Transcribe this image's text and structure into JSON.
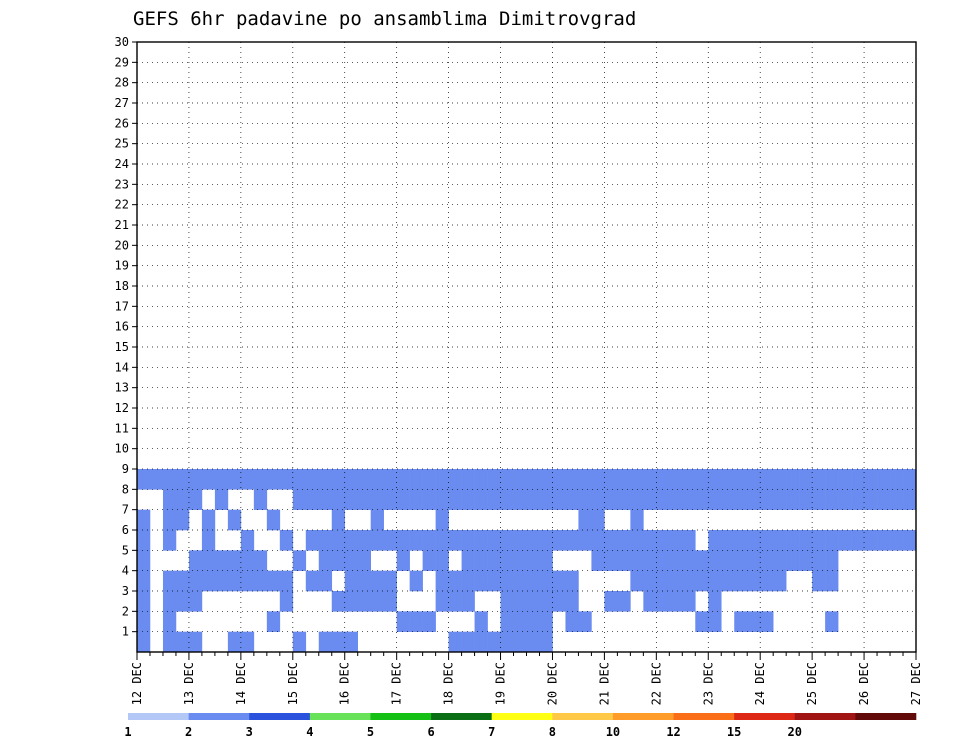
{
  "chart_data": {
    "type": "heatmap",
    "title": "GEFS 6hr padavine po ansamblima Dimitrovgrad",
    "xlabel": "",
    "ylabel": "",
    "x_tick_labels": [
      "12 DEC",
      "13 DEC",
      "14 DEC",
      "15 DEC",
      "16 DEC",
      "17 DEC",
      "18 DEC",
      "19 DEC",
      "20 DEC",
      "21 DEC",
      "22 DEC",
      "23 DEC",
      "24 DEC",
      "25 DEC",
      "26 DEC",
      "27 DEC"
    ],
    "y_tick_labels": [
      "1",
      "2",
      "3",
      "4",
      "5",
      "6",
      "7",
      "8",
      "9",
      "10",
      "11",
      "12",
      "13",
      "14",
      "15",
      "16",
      "17",
      "18",
      "19",
      "20",
      "21",
      "22",
      "23",
      "24",
      "25",
      "26",
      "27",
      "28",
      "29",
      "30"
    ],
    "xlim": [
      0,
      60
    ],
    "ylim": [
      0,
      30
    ],
    "grid": true,
    "x_unit": "6-hour steps from 12 DEC 00Z",
    "y_unit": "ensemble member",
    "colorbar": {
      "levels": [
        "1",
        "2",
        "3",
        "4",
        "5",
        "6",
        "7",
        "8",
        "10",
        "12",
        "15",
        "20"
      ],
      "colors": [
        "#b4c8f8",
        "#6a8cf0",
        "#2a52dc",
        "#68e258",
        "#14c014",
        "#0a6e14",
        "#ffff14",
        "#ffc846",
        "#ff9c2a",
        "#fa6e18",
        "#dc2814",
        "#a01414",
        "#620a0a"
      ]
    },
    "cells": [
      [
        0,
        0,
        1
      ],
      [
        2,
        0,
        1
      ],
      [
        3,
        0,
        1
      ],
      [
        4,
        0,
        1
      ],
      [
        7,
        0,
        1
      ],
      [
        8,
        0,
        1
      ],
      [
        12,
        0,
        1
      ],
      [
        14,
        0,
        1
      ],
      [
        15,
        0,
        1
      ],
      [
        16,
        0,
        1
      ],
      [
        24,
        0,
        1
      ],
      [
        25,
        0,
        1
      ],
      [
        26,
        0,
        1
      ],
      [
        27,
        0,
        1
      ],
      [
        28,
        0,
        1
      ],
      [
        29,
        0,
        1
      ],
      [
        30,
        0,
        1
      ],
      [
        31,
        0,
        1
      ],
      [
        0,
        1,
        1
      ],
      [
        2,
        1,
        1
      ],
      [
        10,
        1,
        1
      ],
      [
        20,
        1,
        1
      ],
      [
        21,
        1,
        1
      ],
      [
        22,
        1,
        1
      ],
      [
        26,
        1,
        1
      ],
      [
        28,
        1,
        1
      ],
      [
        29,
        1,
        1
      ],
      [
        30,
        1,
        1
      ],
      [
        31,
        1,
        1
      ],
      [
        33,
        1,
        1
      ],
      [
        34,
        1,
        1
      ],
      [
        43,
        1,
        1
      ],
      [
        44,
        1,
        1
      ],
      [
        46,
        1,
        1
      ],
      [
        47,
        1,
        1
      ],
      [
        48,
        1,
        1
      ],
      [
        53,
        1,
        1
      ],
      [
        0,
        2,
        1
      ],
      [
        2,
        2,
        1
      ],
      [
        3,
        2,
        1
      ],
      [
        4,
        2,
        1
      ],
      [
        11,
        2,
        1
      ],
      [
        15,
        2,
        1
      ],
      [
        16,
        2,
        1
      ],
      [
        17,
        2,
        1
      ],
      [
        18,
        2,
        1
      ],
      [
        19,
        2,
        1
      ],
      [
        23,
        2,
        1
      ],
      [
        24,
        2,
        1
      ],
      [
        25,
        2,
        1
      ],
      [
        28,
        2,
        1
      ],
      [
        29,
        2,
        1
      ],
      [
        30,
        2,
        1
      ],
      [
        31,
        2,
        1
      ],
      [
        32,
        2,
        1
      ],
      [
        33,
        2,
        1
      ],
      [
        36,
        2,
        1
      ],
      [
        37,
        2,
        1
      ],
      [
        39,
        2,
        1
      ],
      [
        40,
        2,
        1
      ],
      [
        41,
        2,
        1
      ],
      [
        42,
        2,
        1
      ],
      [
        44,
        2,
        1
      ],
      [
        0,
        3,
        1
      ],
      [
        2,
        3,
        1
      ],
      [
        3,
        3,
        1
      ],
      [
        4,
        3,
        1
      ],
      [
        5,
        3,
        1
      ],
      [
        6,
        3,
        1
      ],
      [
        7,
        3,
        1
      ],
      [
        8,
        3,
        1
      ],
      [
        9,
        3,
        1
      ],
      [
        10,
        3,
        1
      ],
      [
        11,
        3,
        1
      ],
      [
        13,
        3,
        1
      ],
      [
        14,
        3,
        1
      ],
      [
        16,
        3,
        1
      ],
      [
        17,
        3,
        1
      ],
      [
        18,
        3,
        1
      ],
      [
        19,
        3,
        1
      ],
      [
        21,
        3,
        1
      ],
      [
        23,
        3,
        1
      ],
      [
        24,
        3,
        1
      ],
      [
        25,
        3,
        1
      ],
      [
        26,
        3,
        1
      ],
      [
        27,
        3,
        1
      ],
      [
        28,
        3,
        1
      ],
      [
        29,
        3,
        1
      ],
      [
        30,
        3,
        1
      ],
      [
        31,
        3,
        1
      ],
      [
        32,
        3,
        1
      ],
      [
        33,
        3,
        1
      ],
      [
        38,
        3,
        1
      ],
      [
        39,
        3,
        1
      ],
      [
        40,
        3,
        1
      ],
      [
        41,
        3,
        1
      ],
      [
        42,
        3,
        1
      ],
      [
        43,
        3,
        1
      ],
      [
        44,
        3,
        1
      ],
      [
        45,
        3,
        1
      ],
      [
        46,
        3,
        1
      ],
      [
        47,
        3,
        1
      ],
      [
        48,
        3,
        1
      ],
      [
        49,
        3,
        1
      ],
      [
        52,
        3,
        1
      ],
      [
        53,
        3,
        1
      ],
      [
        0,
        4,
        1
      ],
      [
        4,
        4,
        1
      ],
      [
        5,
        4,
        1
      ],
      [
        6,
        4,
        1
      ],
      [
        7,
        4,
        1
      ],
      [
        8,
        4,
        1
      ],
      [
        9,
        4,
        1
      ],
      [
        12,
        4,
        1
      ],
      [
        14,
        4,
        1
      ],
      [
        15,
        4,
        1
      ],
      [
        16,
        4,
        1
      ],
      [
        17,
        4,
        1
      ],
      [
        20,
        4,
        1
      ],
      [
        22,
        4,
        1
      ],
      [
        23,
        4,
        1
      ],
      [
        25,
        4,
        1
      ],
      [
        26,
        4,
        1
      ],
      [
        27,
        4,
        1
      ],
      [
        28,
        4,
        1
      ],
      [
        29,
        4,
        1
      ],
      [
        30,
        4,
        1
      ],
      [
        31,
        4,
        1
      ],
      [
        35,
        4,
        1
      ],
      [
        36,
        4,
        1
      ],
      [
        37,
        4,
        1
      ],
      [
        38,
        4,
        1
      ],
      [
        39,
        4,
        1
      ],
      [
        40,
        4,
        1
      ],
      [
        41,
        4,
        1
      ],
      [
        42,
        4,
        1
      ],
      [
        43,
        4,
        1
      ],
      [
        44,
        4,
        1
      ],
      [
        45,
        4,
        1
      ],
      [
        46,
        4,
        1
      ],
      [
        47,
        4,
        1
      ],
      [
        48,
        4,
        1
      ],
      [
        49,
        4,
        1
      ],
      [
        50,
        4,
        1
      ],
      [
        51,
        4,
        1
      ],
      [
        52,
        4,
        1
      ],
      [
        53,
        4,
        1
      ],
      [
        0,
        5,
        1
      ],
      [
        2,
        5,
        1
      ],
      [
        5,
        5,
        1
      ],
      [
        8,
        5,
        1
      ],
      [
        11,
        5,
        1
      ],
      [
        13,
        5,
        1
      ],
      [
        14,
        5,
        1
      ],
      [
        15,
        5,
        1
      ],
      [
        16,
        5,
        1
      ],
      [
        17,
        5,
        1
      ],
      [
        18,
        5,
        1
      ],
      [
        19,
        5,
        1
      ],
      [
        20,
        5,
        1
      ],
      [
        21,
        5,
        1
      ],
      [
        22,
        5,
        1
      ],
      [
        23,
        5,
        1
      ],
      [
        24,
        5,
        1
      ],
      [
        25,
        5,
        1
      ],
      [
        26,
        5,
        1
      ],
      [
        27,
        5,
        1
      ],
      [
        28,
        5,
        1
      ],
      [
        29,
        5,
        1
      ],
      [
        30,
        5,
        1
      ],
      [
        31,
        5,
        1
      ],
      [
        32,
        5,
        1
      ],
      [
        33,
        5,
        1
      ],
      [
        34,
        5,
        1
      ],
      [
        35,
        5,
        1
      ],
      [
        36,
        5,
        1
      ],
      [
        37,
        5,
        1
      ],
      [
        38,
        5,
        1
      ],
      [
        39,
        5,
        1
      ],
      [
        40,
        5,
        1
      ],
      [
        41,
        5,
        1
      ],
      [
        42,
        5,
        1
      ],
      [
        44,
        5,
        1
      ],
      [
        45,
        5,
        1
      ],
      [
        46,
        5,
        1
      ],
      [
        47,
        5,
        1
      ],
      [
        48,
        5,
        1
      ],
      [
        49,
        5,
        1
      ],
      [
        50,
        5,
        1
      ],
      [
        51,
        5,
        1
      ],
      [
        52,
        5,
        1
      ],
      [
        53,
        5,
        1
      ],
      [
        54,
        5,
        1
      ],
      [
        55,
        5,
        1
      ],
      [
        56,
        5,
        1
      ],
      [
        57,
        5,
        1
      ],
      [
        58,
        5,
        1
      ],
      [
        59,
        5,
        1
      ],
      [
        0,
        6,
        1
      ],
      [
        2,
        6,
        1
      ],
      [
        3,
        6,
        1
      ],
      [
        5,
        6,
        1
      ],
      [
        7,
        6,
        1
      ],
      [
        10,
        6,
        1
      ],
      [
        15,
        6,
        1
      ],
      [
        18,
        6,
        1
      ],
      [
        23,
        6,
        1
      ],
      [
        34,
        6,
        1
      ],
      [
        35,
        6,
        1
      ],
      [
        38,
        6,
        1
      ],
      [
        2,
        7,
        1
      ],
      [
        3,
        7,
        1
      ],
      [
        4,
        7,
        1
      ],
      [
        6,
        7,
        1
      ],
      [
        9,
        7,
        1
      ],
      [
        12,
        7,
        1
      ],
      [
        13,
        7,
        1
      ],
      [
        14,
        7,
        1
      ],
      [
        15,
        7,
        1
      ],
      [
        16,
        7,
        1
      ],
      [
        17,
        7,
        1
      ],
      [
        18,
        7,
        1
      ],
      [
        19,
        7,
        1
      ],
      [
        20,
        7,
        1
      ],
      [
        21,
        7,
        1
      ],
      [
        22,
        7,
        1
      ],
      [
        23,
        7,
        1
      ],
      [
        24,
        7,
        1
      ],
      [
        25,
        7,
        1
      ],
      [
        26,
        7,
        1
      ],
      [
        27,
        7,
        1
      ],
      [
        28,
        7,
        1
      ],
      [
        29,
        7,
        1
      ],
      [
        30,
        7,
        1
      ],
      [
        31,
        7,
        1
      ],
      [
        32,
        7,
        1
      ],
      [
        33,
        7,
        1
      ],
      [
        34,
        7,
        1
      ],
      [
        35,
        7,
        1
      ],
      [
        36,
        7,
        1
      ],
      [
        37,
        7,
        1
      ],
      [
        38,
        7,
        1
      ],
      [
        39,
        7,
        1
      ],
      [
        40,
        7,
        1
      ],
      [
        41,
        7,
        1
      ],
      [
        42,
        7,
        1
      ],
      [
        43,
        7,
        1
      ],
      [
        44,
        7,
        1
      ],
      [
        45,
        7,
        1
      ],
      [
        46,
        7,
        1
      ],
      [
        47,
        7,
        1
      ],
      [
        48,
        7,
        1
      ],
      [
        49,
        7,
        1
      ],
      [
        50,
        7,
        1
      ],
      [
        51,
        7,
        1
      ],
      [
        52,
        7,
        1
      ],
      [
        53,
        7,
        1
      ],
      [
        54,
        7,
        1
      ],
      [
        55,
        7,
        1
      ],
      [
        56,
        7,
        1
      ],
      [
        57,
        7,
        1
      ],
      [
        58,
        7,
        1
      ],
      [
        59,
        7,
        1
      ],
      [
        0,
        8,
        1
      ],
      [
        1,
        8,
        1
      ],
      [
        2,
        8,
        1
      ],
      [
        3,
        8,
        1
      ],
      [
        4,
        8,
        1
      ],
      [
        5,
        8,
        1
      ],
      [
        6,
        8,
        1
      ],
      [
        7,
        8,
        1
      ],
      [
        8,
        8,
        1
      ],
      [
        9,
        8,
        1
      ],
      [
        10,
        8,
        1
      ],
      [
        11,
        8,
        1
      ],
      [
        12,
        8,
        1
      ],
      [
        13,
        8,
        1
      ],
      [
        14,
        8,
        1
      ],
      [
        15,
        8,
        1
      ],
      [
        16,
        8,
        1
      ],
      [
        17,
        8,
        1
      ],
      [
        18,
        8,
        1
      ],
      [
        19,
        8,
        1
      ],
      [
        20,
        8,
        1
      ],
      [
        21,
        8,
        1
      ],
      [
        22,
        8,
        1
      ],
      [
        23,
        8,
        1
      ],
      [
        24,
        8,
        1
      ],
      [
        25,
        8,
        1
      ],
      [
        26,
        8,
        1
      ],
      [
        27,
        8,
        1
      ],
      [
        28,
        8,
        1
      ],
      [
        29,
        8,
        1
      ],
      [
        30,
        8,
        1
      ],
      [
        31,
        8,
        1
      ],
      [
        32,
        8,
        1
      ],
      [
        33,
        8,
        1
      ],
      [
        34,
        8,
        1
      ],
      [
        35,
        8,
        1
      ],
      [
        36,
        8,
        1
      ],
      [
        37,
        8,
        1
      ],
      [
        38,
        8,
        1
      ],
      [
        39,
        8,
        1
      ],
      [
        40,
        8,
        1
      ],
      [
        41,
        8,
        1
      ],
      [
        42,
        8,
        1
      ],
      [
        43,
        8,
        1
      ],
      [
        44,
        8,
        1
      ],
      [
        45,
        8,
        1
      ],
      [
        46,
        8,
        1
      ],
      [
        47,
        8,
        1
      ],
      [
        48,
        8,
        1
      ],
      [
        49,
        8,
        1
      ],
      [
        50,
        8,
        1
      ],
      [
        51,
        8,
        1
      ],
      [
        52,
        8,
        1
      ],
      [
        53,
        8,
        1
      ],
      [
        54,
        8,
        1
      ],
      [
        55,
        8,
        1
      ],
      [
        56,
        8,
        1
      ],
      [
        57,
        8,
        1
      ],
      [
        58,
        8,
        1
      ],
      [
        59,
        8,
        1
      ]
    ]
  }
}
